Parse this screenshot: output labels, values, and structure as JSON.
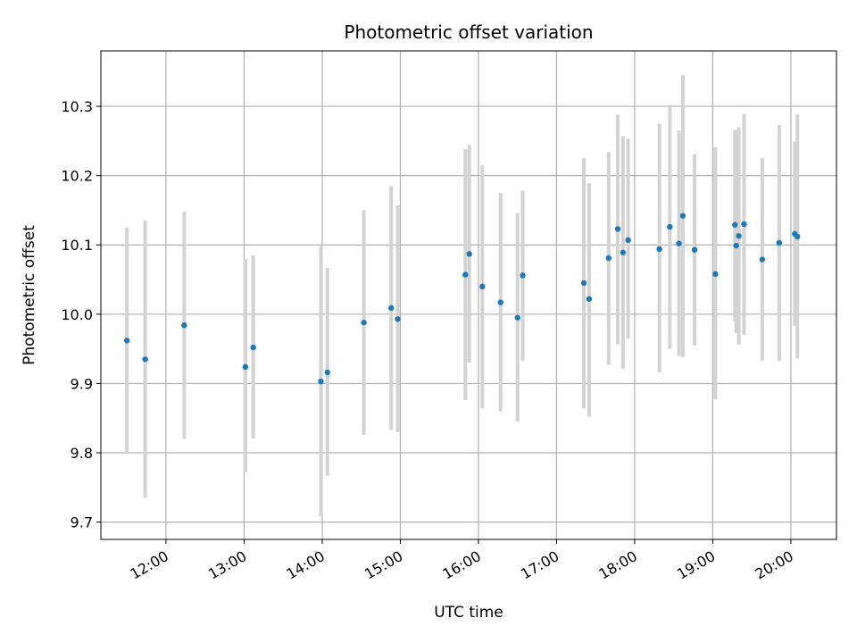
{
  "chart_data": {
    "type": "scatter",
    "title": "Photometric offset variation",
    "xlabel": "UTC time",
    "ylabel": "Photometric offset",
    "xlim": [
      "11:10",
      "20:35"
    ],
    "ylim": [
      9.675,
      10.38
    ],
    "grid": true,
    "x_ticks": [
      "12:00",
      "13:00",
      "14:00",
      "15:00",
      "16:00",
      "17:00",
      "18:00",
      "19:00",
      "20:00"
    ],
    "y_ticks": [
      9.7,
      9.8,
      9.9,
      10.0,
      10.1,
      10.2,
      10.3
    ],
    "y_tick_labels": [
      "9.7",
      "9.8",
      "9.9",
      "10.0",
      "10.1",
      "10.2",
      "10.3"
    ],
    "colors": {
      "point": "#1f77b4",
      "errorbar": "#d3d3d3",
      "grid": "#b0b0b0"
    },
    "points": [
      {
        "x": "11:30",
        "y": 9.962,
        "ylo": 9.8,
        "yhi": 10.125
      },
      {
        "x": "11:44",
        "y": 9.935,
        "ylo": 9.735,
        "yhi": 10.135
      },
      {
        "x": "12:14",
        "y": 9.984,
        "ylo": 9.82,
        "yhi": 10.148
      },
      {
        "x": "13:01",
        "y": 9.924,
        "ylo": 9.772,
        "yhi": 10.08
      },
      {
        "x": "13:07",
        "y": 9.952,
        "ylo": 9.821,
        "yhi": 10.085
      },
      {
        "x": "13:59",
        "y": 9.903,
        "ylo": 9.708,
        "yhi": 10.1
      },
      {
        "x": "14:04",
        "y": 9.916,
        "ylo": 9.767,
        "yhi": 10.067
      },
      {
        "x": "14:32",
        "y": 9.988,
        "ylo": 9.826,
        "yhi": 10.15
      },
      {
        "x": "14:53",
        "y": 10.009,
        "ylo": 9.833,
        "yhi": 10.185
      },
      {
        "x": "14:58",
        "y": 9.993,
        "ylo": 9.83,
        "yhi": 10.157
      },
      {
        "x": "15:50",
        "y": 10.057,
        "ylo": 9.876,
        "yhi": 10.238
      },
      {
        "x": "15:53",
        "y": 10.087,
        "ylo": 9.93,
        "yhi": 10.244
      },
      {
        "x": "16:03",
        "y": 10.04,
        "ylo": 9.864,
        "yhi": 10.215
      },
      {
        "x": "16:17",
        "y": 10.017,
        "ylo": 9.86,
        "yhi": 10.175
      },
      {
        "x": "16:30",
        "y": 9.995,
        "ylo": 9.845,
        "yhi": 10.146
      },
      {
        "x": "16:34",
        "y": 10.056,
        "ylo": 9.933,
        "yhi": 10.178
      },
      {
        "x": "17:21",
        "y": 10.045,
        "ylo": 9.864,
        "yhi": 10.225
      },
      {
        "x": "17:25",
        "y": 10.022,
        "ylo": 9.852,
        "yhi": 10.189
      },
      {
        "x": "17:40",
        "y": 10.081,
        "ylo": 9.927,
        "yhi": 10.234
      },
      {
        "x": "17:47",
        "y": 10.123,
        "ylo": 9.957,
        "yhi": 10.288
      },
      {
        "x": "17:51",
        "y": 10.089,
        "ylo": 9.921,
        "yhi": 10.257
      },
      {
        "x": "17:55",
        "y": 10.107,
        "ylo": 9.965,
        "yhi": 10.253
      },
      {
        "x": "18:19",
        "y": 10.094,
        "ylo": 9.916,
        "yhi": 10.275
      },
      {
        "x": "18:27",
        "y": 10.126,
        "ylo": 9.95,
        "yhi": 10.302
      },
      {
        "x": "18:34",
        "y": 10.102,
        "ylo": 9.94,
        "yhi": 10.265
      },
      {
        "x": "18:37",
        "y": 10.142,
        "ylo": 9.938,
        "yhi": 10.345
      },
      {
        "x": "18:46",
        "y": 10.093,
        "ylo": 9.955,
        "yhi": 10.231
      },
      {
        "x": "19:02",
        "y": 10.058,
        "ylo": 9.877,
        "yhi": 10.241
      },
      {
        "x": "19:17",
        "y": 10.129,
        "ylo": 9.99,
        "yhi": 10.266
      },
      {
        "x": "19:18",
        "y": 10.099,
        "ylo": 9.973,
        "yhi": 10.265
      },
      {
        "x": "19:20",
        "y": 10.113,
        "ylo": 9.956,
        "yhi": 10.27
      },
      {
        "x": "19:24",
        "y": 10.13,
        "ylo": 9.97,
        "yhi": 10.289
      },
      {
        "x": "19:38",
        "y": 10.079,
        "ylo": 9.933,
        "yhi": 10.225
      },
      {
        "x": "19:51",
        "y": 10.103,
        "ylo": 9.933,
        "yhi": 10.273
      },
      {
        "x": "20:03",
        "y": 10.116,
        "ylo": 9.983,
        "yhi": 10.249
      },
      {
        "x": "20:05",
        "y": 10.112,
        "ylo": 9.936,
        "yhi": 10.288
      }
    ]
  }
}
